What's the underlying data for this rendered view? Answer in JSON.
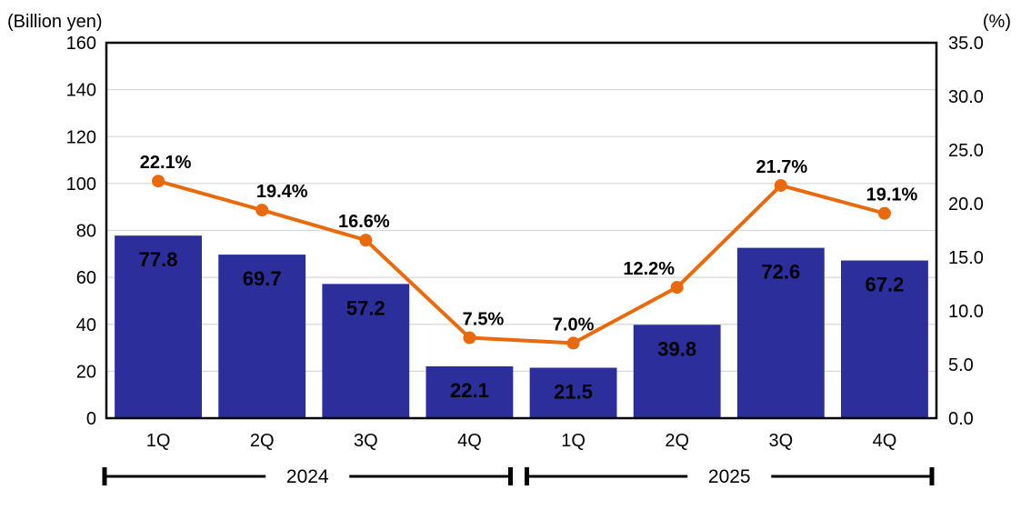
{
  "chart_data": {
    "type": "bar+line combo",
    "title": "",
    "left_axis_unit": "(Billion yen)",
    "right_axis_unit": "(%)",
    "left_axis": {
      "min": 0,
      "max": 160,
      "step": 20,
      "tick_labels": [
        "0",
        "20",
        "40",
        "60",
        "80",
        "100",
        "120",
        "140",
        "160"
      ]
    },
    "right_axis": {
      "min": 0,
      "max": 35,
      "step": 5,
      "tick_labels": [
        "0.0",
        "5.0",
        "10.0",
        "15.0",
        "20.0",
        "25.0",
        "30.0",
        "35.0"
      ]
    },
    "categories": [
      "1Q",
      "2Q",
      "3Q",
      "4Q",
      "1Q",
      "2Q",
      "3Q",
      "4Q"
    ],
    "groups": [
      {
        "year": "2024",
        "span": 4
      },
      {
        "year": "2025",
        "span": 4
      }
    ],
    "series": [
      {
        "name": "quarterly-amount",
        "type": "bar",
        "axis": "left",
        "color": "#2B2E9B",
        "label_color": "#FFFFFF",
        "values": [
          77.8,
          69.7,
          57.2,
          22.1,
          21.5,
          39.8,
          72.6,
          67.2
        ],
        "labels": [
          "77.8",
          "69.7",
          "57.2",
          "22.1",
          "21.5",
          "39.8",
          "72.6",
          "67.2"
        ]
      },
      {
        "name": "ratio-percent",
        "type": "line",
        "axis": "right",
        "color": "#E96A0D",
        "values": [
          22.1,
          19.4,
          16.6,
          7.5,
          7.0,
          12.2,
          21.7,
          19.1
        ],
        "labels": [
          "22.1%",
          "19.4%",
          "16.6%",
          "7.5%",
          "7.0%",
          "12.2%",
          "21.7%",
          "19.1%"
        ]
      }
    ],
    "grid_color": "#D9D9D9",
    "axis_color": "#000000",
    "background": "#FFFFFF",
    "legend_position": "none"
  }
}
